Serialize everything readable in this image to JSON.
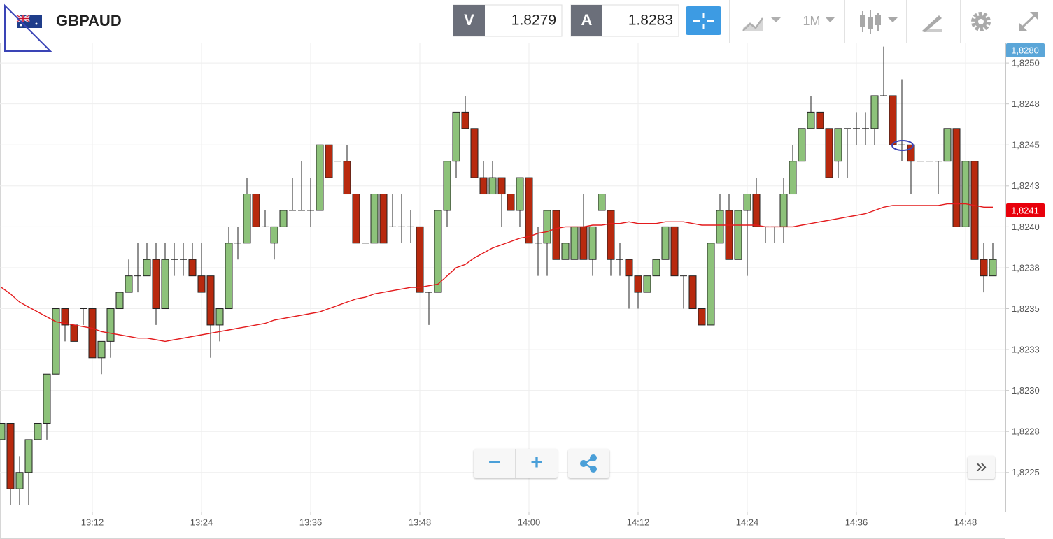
{
  "toolbar": {
    "symbol": "GBPAUD",
    "bid_label": "V",
    "bid": "1.8279",
    "ask_label": "A",
    "ask": "1.8283",
    "timeframe": "1M"
  },
  "controls": {
    "zoom_out": "−",
    "zoom_in": "+",
    "scroll": "»"
  },
  "chart_data": {
    "type": "candlestick",
    "up_color": "#8dc27a",
    "down_color": "#b8290e",
    "categories": [
      null,
      null,
      null,
      null,
      null,
      null,
      null,
      null,
      null,
      null,
      "13:12",
      null,
      null,
      null,
      null,
      null,
      null,
      null,
      null,
      null,
      null,
      null,
      "13:24",
      null,
      null,
      null,
      null,
      null,
      null,
      null,
      null,
      null,
      null,
      null,
      "13:36",
      null,
      null,
      null,
      null,
      null,
      null,
      null,
      null,
      null,
      null,
      null,
      "13:48",
      null,
      null,
      null,
      null,
      null,
      null,
      null,
      null,
      null,
      null,
      null,
      "14:00",
      null,
      null,
      null,
      null,
      null,
      null,
      null,
      null,
      null,
      null,
      null,
      "14:12",
      null,
      null,
      null,
      null,
      null,
      null,
      null,
      null,
      null,
      null,
      null,
      "14:24",
      null,
      null,
      null,
      null,
      null,
      null,
      null,
      null,
      null,
      null,
      null,
      "14:36",
      null,
      null,
      null,
      null,
      null,
      null,
      null,
      null,
      null,
      null,
      null,
      "14:48",
      null,
      null,
      null
    ],
    "open": [
      1.8227,
      1.8228,
      1.8224,
      1.8225,
      1.8227,
      1.8228,
      1.8231,
      1.8235,
      1.8234,
      1.8235,
      1.8235,
      1.8232,
      1.8233,
      1.8235,
      1.8236,
      1.8237,
      1.8237,
      1.8238,
      1.8235,
      1.8238,
      1.8238,
      1.8238,
      1.8237,
      1.8237,
      1.8234,
      1.8235,
      1.8239,
      1.8239,
      1.8242,
      1.824,
      1.8239,
      1.824,
      1.8241,
      1.8241,
      1.8241,
      1.8241,
      1.8245,
      1.8244,
      1.8244,
      1.8242,
      1.8239,
      1.8239,
      1.8242,
      1.824,
      1.824,
      1.824,
      1.824,
      1.8236,
      1.8236,
      1.8241,
      1.8244,
      1.8247,
      1.8246,
      1.8243,
      1.8242,
      1.8243,
      1.8242,
      1.8241,
      1.8243,
      1.8239,
      1.8239,
      1.8241,
      1.8238,
      1.8238,
      1.824,
      1.8238,
      1.8241,
      1.8241,
      1.8238,
      1.8238,
      1.8237,
      1.8236,
      1.8237,
      1.8238,
      1.824,
      1.8237,
      1.8237,
      1.8235,
      1.8234,
      1.8239,
      1.8241,
      1.8238,
      1.8241,
      1.8242,
      1.824,
      1.824,
      1.824,
      1.8242,
      1.8244,
      1.8246,
      1.8247,
      1.8246,
      1.8244,
      1.8246,
      1.8246,
      1.8246,
      1.8246,
      1.8248,
      1.8248,
      1.8245,
      1.8245,
      1.8244,
      1.8244,
      1.8244,
      1.8244,
      1.8246,
      1.824,
      1.8244,
      1.8238,
      1.8237
    ],
    "high": [
      1.8228,
      1.8228,
      1.8226,
      1.8227,
      1.8228,
      1.8231,
      1.8235,
      1.8235,
      1.8234,
      1.8235,
      1.8235,
      1.8233,
      1.8235,
      1.8236,
      1.8238,
      1.8239,
      1.8239,
      1.8239,
      1.8239,
      1.8239,
      1.8239,
      1.8239,
      1.8239,
      1.8237,
      1.8235,
      1.824,
      1.824,
      1.8243,
      1.8242,
      1.8241,
      1.824,
      1.8241,
      1.8243,
      1.8244,
      1.8243,
      1.8245,
      1.8245,
      1.8244,
      1.8245,
      1.8242,
      1.8239,
      1.8242,
      1.8242,
      1.8242,
      1.8242,
      1.8241,
      1.824,
      1.8236,
      1.8241,
      1.8244,
      1.8247,
      1.8248,
      1.8246,
      1.8244,
      1.8244,
      1.8243,
      1.8242,
      1.8243,
      1.8243,
      1.824,
      1.8241,
      1.8241,
      1.8239,
      1.824,
      1.8242,
      1.824,
      1.8242,
      1.8241,
      1.8239,
      1.8238,
      1.8237,
      1.8237,
      1.8238,
      1.824,
      1.824,
      1.8237,
      1.8237,
      1.8235,
      1.8239,
      1.8242,
      1.8242,
      1.8241,
      1.8242,
      1.8243,
      1.824,
      1.824,
      1.8243,
      1.8245,
      1.8246,
      1.8248,
      1.8247,
      1.8246,
      1.8246,
      1.8246,
      1.8247,
      1.8247,
      1.8248,
      1.8251,
      1.8248,
      1.8249,
      1.8245,
      1.8244,
      1.8244,
      1.8244,
      1.8246,
      1.8246,
      1.8244,
      1.8244,
      1.8239,
      1.8239
    ],
    "low": [
      1.8227,
      1.8223,
      1.8223,
      1.8223,
      1.8227,
      1.8227,
      1.8231,
      1.8233,
      1.8233,
      1.8234,
      1.8232,
      1.8231,
      1.8232,
      1.8235,
      1.8236,
      1.8236,
      1.8237,
      1.8234,
      1.8235,
      1.8237,
      1.8237,
      1.8237,
      1.8236,
      1.8232,
      1.8233,
      1.8235,
      1.8238,
      1.8239,
      1.824,
      1.824,
      1.8238,
      1.824,
      1.8241,
      1.8241,
      1.824,
      1.8241,
      1.8243,
      1.8244,
      1.8242,
      1.8239,
      1.8239,
      1.8239,
      1.8239,
      1.824,
      1.8239,
      1.8239,
      1.8236,
      1.8234,
      1.8236,
      1.824,
      1.8243,
      1.8246,
      1.8243,
      1.8242,
      1.8242,
      1.824,
      1.8241,
      1.824,
      1.8239,
      1.8237,
      1.8237,
      1.8238,
      1.8238,
      1.8238,
      1.8238,
      1.8237,
      1.8241,
      1.8237,
      1.8237,
      1.8235,
      1.8235,
      1.8236,
      1.8237,
      1.8238,
      1.8237,
      1.8235,
      1.8235,
      1.8234,
      1.8234,
      1.8239,
      1.8238,
      1.8238,
      1.8237,
      1.824,
      1.8239,
      1.8239,
      1.8239,
      1.8242,
      1.8244,
      1.8246,
      1.8246,
      1.8243,
      1.8243,
      1.8243,
      1.8245,
      1.8245,
      1.8245,
      1.8248,
      1.8245,
      1.8244,
      1.8242,
      1.8244,
      1.8244,
      1.8242,
      1.8244,
      1.824,
      1.824,
      1.8238,
      1.8236,
      1.8237
    ],
    "close": [
      1.8228,
      1.8224,
      1.8225,
      1.8227,
      1.8228,
      1.8231,
      1.8235,
      1.8234,
      1.8233,
      1.8235,
      1.8232,
      1.8233,
      1.8235,
      1.8236,
      1.8237,
      1.8237,
      1.8238,
      1.8235,
      1.8238,
      1.8238,
      1.8238,
      1.8237,
      1.8236,
      1.8234,
      1.8235,
      1.8239,
      1.8239,
      1.8242,
      1.824,
      1.824,
      1.824,
      1.8241,
      1.8241,
      1.8241,
      1.8241,
      1.8245,
      1.8243,
      1.8244,
      1.8242,
      1.8239,
      1.8239,
      1.8242,
      1.8239,
      1.824,
      1.824,
      1.824,
      1.8236,
      1.8236,
      1.8241,
      1.8244,
      1.8247,
      1.8246,
      1.8243,
      1.8242,
      1.8243,
      1.8242,
      1.8241,
      1.8243,
      1.8239,
      1.8239,
      1.8241,
      1.8238,
      1.8239,
      1.824,
      1.8238,
      1.824,
      1.8242,
      1.8238,
      1.8238,
      1.8237,
      1.8236,
      1.8237,
      1.8238,
      1.824,
      1.8237,
      1.8237,
      1.8235,
      1.8234,
      1.8239,
      1.8241,
      1.8238,
      1.8241,
      1.8242,
      1.824,
      1.824,
      1.824,
      1.8242,
      1.8244,
      1.8246,
      1.8247,
      1.8246,
      1.8243,
      1.8246,
      1.8246,
      1.8246,
      1.8246,
      1.8248,
      1.8248,
      1.8245,
      1.8245,
      1.8244,
      1.8244,
      1.8244,
      1.8244,
      1.8246,
      1.824,
      1.8244,
      1.8238,
      1.8237,
      1.8238
    ],
    "moving_average": {
      "color": "#e31a1c",
      "values": [
        1.82363,
        1.82359,
        1.82354,
        1.82351,
        1.82348,
        1.82345,
        1.82342,
        1.82341,
        1.8234,
        1.82339,
        1.82338,
        1.82336,
        1.82335,
        1.82334,
        1.82333,
        1.82332,
        1.82332,
        1.82331,
        1.8233,
        1.82331,
        1.82332,
        1.82333,
        1.82334,
        1.82335,
        1.82336,
        1.82337,
        1.82338,
        1.82339,
        1.8234,
        1.82341,
        1.82343,
        1.82344,
        1.82345,
        1.82346,
        1.82347,
        1.82348,
        1.8235,
        1.82352,
        1.82354,
        1.82356,
        1.82357,
        1.82359,
        1.8236,
        1.82361,
        1.82362,
        1.82363,
        1.82363,
        1.82364,
        1.82365,
        1.8237,
        1.82375,
        1.82377,
        1.82381,
        1.82384,
        1.82387,
        1.82389,
        1.82391,
        1.82393,
        1.82394,
        1.82396,
        1.82397,
        1.82399,
        1.824,
        1.824,
        1.824,
        1.82401,
        1.82401,
        1.82402,
        1.82402,
        1.82403,
        1.82402,
        1.82402,
        1.82402,
        1.82403,
        1.82403,
        1.82403,
        1.82402,
        1.82401,
        1.82401,
        1.82401,
        1.82401,
        1.82401,
        1.82401,
        1.82401,
        1.824,
        1.824,
        1.824,
        1.824,
        1.82401,
        1.82402,
        1.82403,
        1.82404,
        1.82405,
        1.82406,
        1.82407,
        1.82408,
        1.8241,
        1.82412,
        1.82413,
        1.82413,
        1.82413,
        1.82413,
        1.82413,
        1.82413,
        1.82414,
        1.82414,
        1.82414,
        1.82413,
        1.82412,
        1.82412
      ]
    },
    "ylim": [
      1.82226,
      1.82512
    ],
    "yticks": [
      {
        "value": 1.8225,
        "label": "1,8225"
      },
      {
        "value": 1.82275,
        "label": "1,8228"
      },
      {
        "value": 1.823,
        "label": "1,8230"
      },
      {
        "value": 1.82325,
        "label": "1,8233"
      },
      {
        "value": 1.8235,
        "label": "1,8235"
      },
      {
        "value": 1.82375,
        "label": "1,8238"
      },
      {
        "value": 1.824,
        "label": "1,8240"
      },
      {
        "value": 1.82425,
        "label": "1,8243"
      },
      {
        "value": 1.8245,
        "label": "1,8245"
      },
      {
        "value": 1.82475,
        "label": "1,8248"
      },
      {
        "value": 1.825,
        "label": "1,8250"
      }
    ],
    "grid": true,
    "price_markers": [
      {
        "label": "1,8280",
        "color": "#5ba6d8"
      },
      {
        "value": 1.8241,
        "label": "1,8241",
        "color": "#e8000b"
      }
    ]
  }
}
